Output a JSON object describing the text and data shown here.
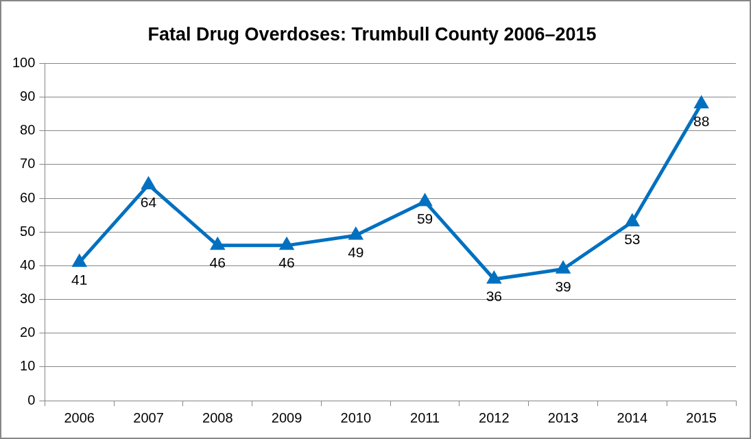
{
  "chart_data": {
    "type": "line",
    "title": "Fatal Drug Overdoses: Trumbull County 2006–2015",
    "categories": [
      "2006",
      "2007",
      "2008",
      "2009",
      "2010",
      "2011",
      "2012",
      "2013",
      "2014",
      "2015"
    ],
    "series": [
      {
        "color": "#0070c0",
        "values": [
          41,
          64,
          46,
          46,
          49,
          59,
          36,
          39,
          53,
          88
        ]
      }
    ],
    "ylim": [
      0,
      100
    ],
    "yticks": [
      0,
      10,
      20,
      30,
      40,
      50,
      60,
      70,
      80,
      90,
      100
    ],
    "grid": "y",
    "legend": false,
    "marker": "triangle",
    "line_style": "solid",
    "data_labels": true
  }
}
